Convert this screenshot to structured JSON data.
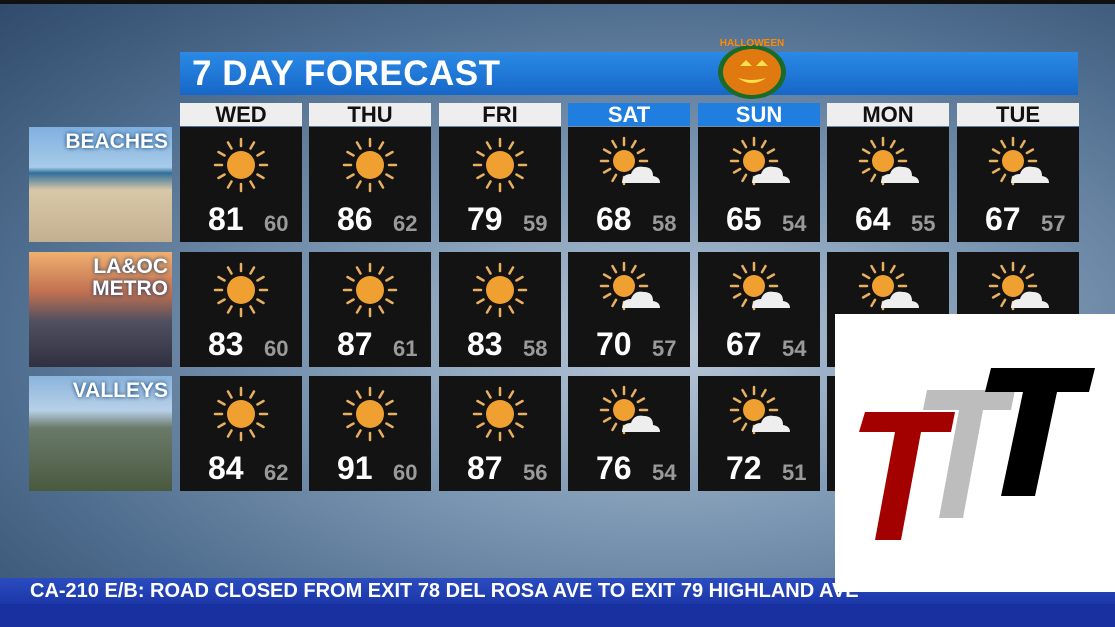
{
  "title": "7 DAY FORECAST",
  "pumpkin_text": "HALLOWEEN",
  "days": [
    {
      "label": "WED",
      "weekend": false
    },
    {
      "label": "THU",
      "weekend": false
    },
    {
      "label": "FRI",
      "weekend": false
    },
    {
      "label": "SAT",
      "weekend": true
    },
    {
      "label": "SUN",
      "weekend": true
    },
    {
      "label": "MON",
      "weekend": false
    },
    {
      "label": "TUE",
      "weekend": false
    }
  ],
  "regions": [
    {
      "label": "BEACHES",
      "temps": [
        {
          "icon": "sunny",
          "hi": "81",
          "lo": "60"
        },
        {
          "icon": "sunny",
          "hi": "86",
          "lo": "62"
        },
        {
          "icon": "sunny",
          "hi": "79",
          "lo": "59"
        },
        {
          "icon": "partly-cloudy",
          "hi": "68",
          "lo": "58"
        },
        {
          "icon": "partly-cloudy",
          "hi": "65",
          "lo": "54"
        },
        {
          "icon": "partly-cloudy",
          "hi": "64",
          "lo": "55"
        },
        {
          "icon": "partly-cloudy",
          "hi": "67",
          "lo": "57"
        }
      ]
    },
    {
      "label1": "LA&OC",
      "label2": "METRO",
      "temps": [
        {
          "icon": "sunny",
          "hi": "83",
          "lo": "60"
        },
        {
          "icon": "sunny",
          "hi": "87",
          "lo": "61"
        },
        {
          "icon": "sunny",
          "hi": "83",
          "lo": "58"
        },
        {
          "icon": "partly-cloudy",
          "hi": "70",
          "lo": "57"
        },
        {
          "icon": "partly-cloudy",
          "hi": "67",
          "lo": "54"
        },
        {
          "icon": "partly-cloudy",
          "hi": "",
          "lo": ""
        },
        {
          "icon": "partly-cloudy",
          "hi": "",
          "lo": ""
        }
      ]
    },
    {
      "label": "VALLEYS",
      "temps": [
        {
          "icon": "sunny",
          "hi": "84",
          "lo": "62"
        },
        {
          "icon": "sunny",
          "hi": "91",
          "lo": "60"
        },
        {
          "icon": "sunny",
          "hi": "87",
          "lo": "56"
        },
        {
          "icon": "partly-cloudy",
          "hi": "76",
          "lo": "54"
        },
        {
          "icon": "partly-cloudy",
          "hi": "72",
          "lo": "51"
        },
        {
          "icon": "partly-cloudy",
          "hi": "",
          "lo": ""
        },
        {
          "icon": "partly-cloudy",
          "hi": "",
          "lo": ""
        }
      ]
    }
  ],
  "ticker": "CA-210 E/B: ROAD CLOSED FROM EXIT 78 DEL ROSA AVE TO EXIT 79 HIGHLAND AVE",
  "colors": {
    "title_bar": "#1f7ee0",
    "sun": "#f0a030",
    "logo_red": "#a30000",
    "logo_gray": "#bdbdbd",
    "logo_black": "#000000"
  }
}
